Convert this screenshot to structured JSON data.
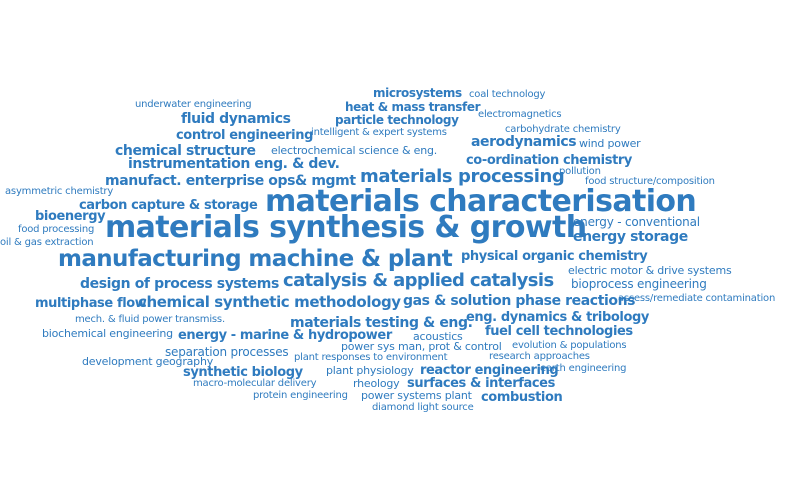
{
  "accent_color": "#2f7bbf",
  "words": [
    "microsystems",
    "coal technology",
    "underwater engineering",
    "heat & mass transfer",
    "electromagnetics",
    "fluid dynamics",
    "particle technology",
    "carbohydrate chemistry",
    "control engineering",
    "intelligent & expert systems",
    "aerodynamics",
    "wind power",
    "chemical structure",
    "electrochemical science & eng.",
    "co-ordination chemistry",
    "instrumentation eng. & dev.",
    "pollution",
    "manufact. enterprise ops& mgmt",
    "materials processing",
    "food structure/composition",
    "asymmetric chemistry",
    "materials characterisation",
    "carbon capture & storage",
    "bioenergy",
    "energy - conventional",
    "food processing",
    "materials synthesis & growth",
    "energy storage",
    "oil & gas extraction",
    "manufacturing machine & plant",
    "physical organic chemistry",
    "electric motor & drive systems",
    "design of process systems",
    "catalysis & applied catalysis",
    "bioprocess engineering",
    "gas & solution phase reactions",
    "assess/remediate contamination",
    "multiphase flow",
    "chemical synthetic methodology",
    "eng. dynamics & tribology",
    "mech. & fluid power transmiss.",
    "materials testing & eng.",
    "fuel cell technologies",
    "biochemical engineering",
    "energy - marine & hydropower",
    "acoustics",
    "power sys man, prot & control",
    "evolution & populations",
    "separation processes",
    "development geography",
    "plant responses to environment",
    "research approaches",
    "synthetic biology",
    "plant physiology",
    "reactor engineering",
    "earth engineering",
    "macro-molecular delivery",
    "rheology",
    "surfaces & interfaces",
    "protein engineering",
    "power systems plant",
    "combustion",
    "diamond light source"
  ]
}
